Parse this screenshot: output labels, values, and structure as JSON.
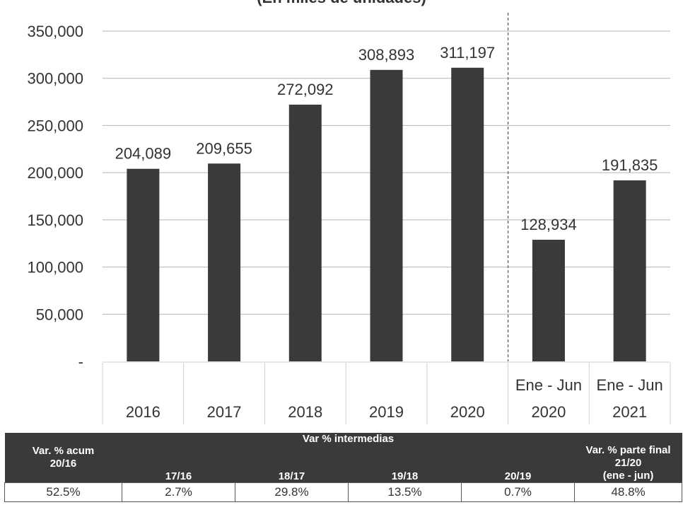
{
  "chart_data": {
    "type": "bar",
    "title": "(En miles de unidades)",
    "categories": [
      [
        "",
        "2016"
      ],
      [
        "",
        "2017"
      ],
      [
        "",
        "2018"
      ],
      [
        "",
        "2019"
      ],
      [
        "",
        "2020"
      ],
      [
        "Ene - Jun",
        "2020"
      ],
      [
        "Ene - Jun",
        "2021"
      ]
    ],
    "values": [
      204089,
      209655,
      272092,
      308893,
      311197,
      128934,
      191835
    ],
    "value_labels": [
      "204,089",
      "209,655",
      "272,092",
      "308,893",
      "311,197",
      "128,934",
      "191,835"
    ],
    "ylim": [
      0,
      350000
    ],
    "yticks": [
      0,
      50000,
      100000,
      150000,
      200000,
      250000,
      300000,
      350000
    ],
    "ytick_labels": [
      "-",
      "50,000",
      "100,000",
      "150,000",
      "200,000",
      "250,000",
      "300,000",
      "350,000"
    ],
    "grid": true,
    "bar_color": "#3a3a3a"
  },
  "table": {
    "acum_header": "Var. % acum",
    "acum_sub": "20/16",
    "intermedias_header": "Var % intermedias",
    "final_header_1": "Var. % parte final",
    "final_header_2": "21/20",
    "final_header_3": "(ene - jun)",
    "sub_headers": [
      "17/16",
      "18/17",
      "19/18",
      "20/19"
    ],
    "values": [
      "52.5%",
      "2.7%",
      "29.8%",
      "13.5%",
      "0.7%",
      "48.8%"
    ]
  }
}
